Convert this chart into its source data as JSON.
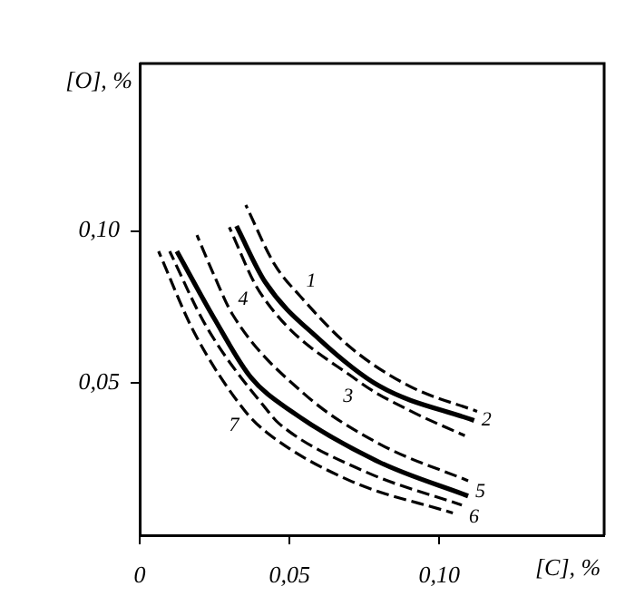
{
  "chart_data": {
    "type": "line",
    "xlabel": "[C], %",
    "ylabel": "[O], %",
    "xlim": [
      0,
      0.155
    ],
    "ylim": [
      0,
      0.155
    ],
    "xticks": [
      {
        "value": 0,
        "label": "0"
      },
      {
        "value": 0.05,
        "label": "0,05"
      },
      {
        "value": 0.1,
        "label": "0,10"
      }
    ],
    "yticks": [
      {
        "value": 0.05,
        "label": "0,05"
      },
      {
        "value": 0.1,
        "label": "0,10"
      }
    ],
    "grid": false,
    "legend": false,
    "marker": "none",
    "series": [
      {
        "name": "1",
        "color": "#000000",
        "line_style": "dashed",
        "x": [
          0.0354,
          0.045,
          0.0537,
          0.07,
          0.09,
          0.1126
        ],
        "values": [
          0.1085,
          0.089,
          0.0784,
          0.062,
          0.049,
          0.0407
        ]
      },
      {
        "name": "2",
        "color": "#000000",
        "line_style": "solid",
        "x": [
          0.0323,
          0.042,
          0.0598,
          0.08,
          0.1116
        ],
        "values": [
          0.1016,
          0.083,
          0.0645,
          0.049,
          0.0377
        ]
      },
      {
        "name": "3",
        "color": "#000000",
        "line_style": "dashed",
        "x": [
          0.0299,
          0.04,
          0.073,
          0.09,
          0.1085
        ],
        "values": [
          0.1012,
          0.08,
          0.0506,
          0.041,
          0.0327
        ]
      },
      {
        "name": "4",
        "color": "#000000",
        "line_style": "dashed",
        "x": [
          0.0191,
          0.025,
          0.031,
          0.0547,
          0.08,
          0.1096
        ],
        "values": [
          0.0986,
          0.085,
          0.0725,
          0.0466,
          0.03,
          0.0179
        ]
      },
      {
        "name": "5",
        "color": "#000000",
        "line_style": "solid",
        "x": [
          0.0124,
          0.025,
          0.037,
          0.0506,
          0.08,
          0.1096
        ],
        "values": [
          0.0933,
          0.071,
          0.052,
          0.0407,
          0.024,
          0.0129
        ]
      },
      {
        "name": "6",
        "color": "#000000",
        "line_style": "dashed",
        "x": [
          0.01,
          0.022,
          0.043,
          0.0465,
          0.075,
          0.1075
        ],
        "values": [
          0.0933,
          0.069,
          0.0405,
          0.0367,
          0.021,
          0.0099
        ]
      },
      {
        "name": "7",
        "color": "#000000",
        "line_style": "dashed",
        "x": [
          0.0063,
          0.018,
          0.035,
          0.0425,
          0.07,
          0.1045
        ],
        "values": [
          0.0933,
          0.067,
          0.041,
          0.0337,
          0.018,
          0.0073
        ]
      }
    ]
  }
}
